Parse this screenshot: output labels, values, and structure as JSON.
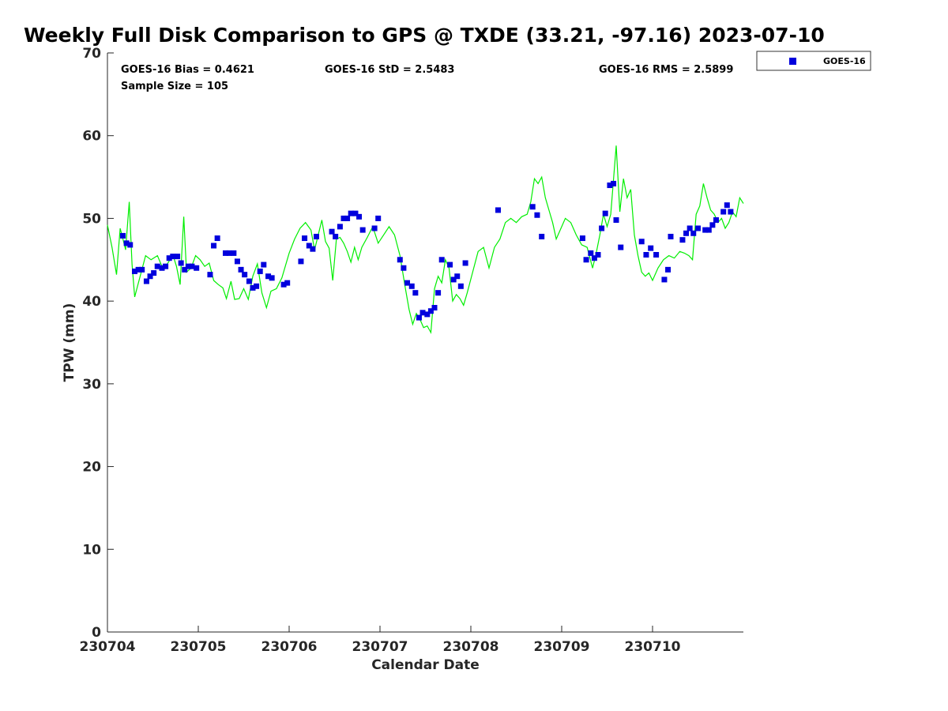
{
  "chart_data": {
    "type": "scatter",
    "title": "Weekly Full Disk Comparison to GPS @ TXDE (33.21, -97.16) 2023-07-10",
    "xlabel": "Calendar Date",
    "ylabel": "TPW (mm)",
    "xlim": [
      0,
      7
    ],
    "ylim": [
      0,
      70
    ],
    "y_ticks": [
      0,
      10,
      20,
      30,
      40,
      50,
      60,
      70
    ],
    "x_tick_positions": [
      0,
      1,
      2,
      3,
      4,
      5,
      6
    ],
    "x_tick_labels": [
      "230704",
      "230705",
      "230706",
      "230707",
      "230708",
      "230709",
      "230710"
    ],
    "grid": false,
    "legend_position": "top-right",
    "stats": {
      "bias": "GOES-16 Bias = 0.4621",
      "std": "GOES-16 StD = 2.5483",
      "rms": "GOES-16 RMS = 2.5899",
      "sample": "Sample Size = 105"
    },
    "series": [
      {
        "name": "GOES-16",
        "kind": "scatter",
        "color": "#0000dd",
        "marker": "square",
        "x": [
          0.17,
          0.21,
          0.25,
          0.3,
          0.34,
          0.38,
          0.43,
          0.47,
          0.51,
          0.55,
          0.6,
          0.64,
          0.68,
          0.72,
          0.77,
          0.81,
          0.85,
          0.89,
          0.93,
          0.98,
          1.13,
          1.17,
          1.21,
          1.3,
          1.34,
          1.39,
          1.43,
          1.47,
          1.51,
          1.56,
          1.6,
          1.64,
          1.68,
          1.72,
          1.77,
          1.81,
          1.94,
          1.98,
          2.13,
          2.17,
          2.22,
          2.26,
          2.3,
          2.47,
          2.51,
          2.56,
          2.6,
          2.64,
          2.68,
          2.73,
          2.77,
          2.81,
          2.94,
          2.98,
          3.22,
          3.26,
          3.3,
          3.35,
          3.39,
          3.43,
          3.47,
          3.52,
          3.56,
          3.6,
          3.64,
          3.68,
          3.77,
          3.81,
          3.85,
          3.89,
          3.94,
          4.3,
          4.68,
          4.73,
          4.78,
          5.23,
          5.27,
          5.32,
          5.36,
          5.4,
          5.44,
          5.48,
          5.53,
          5.57,
          5.6,
          5.65,
          5.88,
          5.93,
          5.98,
          6.04,
          6.13,
          6.17,
          6.2,
          6.33,
          6.37,
          6.41,
          6.45,
          6.5,
          6.58,
          6.62,
          6.66,
          6.7,
          6.78,
          6.82,
          6.86
        ],
        "y": [
          47.9,
          47.0,
          46.8,
          43.6,
          43.8,
          43.8,
          42.4,
          43.0,
          43.4,
          44.2,
          44.0,
          44.2,
          45.2,
          45.4,
          45.4,
          44.6,
          43.8,
          44.2,
          44.2,
          44.0,
          43.2,
          46.7,
          47.6,
          45.8,
          45.8,
          45.8,
          44.8,
          43.8,
          43.2,
          42.4,
          41.6,
          41.8,
          43.6,
          44.4,
          43.0,
          42.8,
          42.0,
          42.2,
          44.8,
          47.6,
          46.7,
          46.3,
          47.8,
          48.4,
          47.8,
          49.0,
          50.0,
          50.0,
          50.6,
          50.6,
          50.2,
          48.6,
          48.8,
          50.0,
          45.0,
          44.0,
          42.2,
          41.8,
          41.0,
          38.0,
          38.6,
          38.4,
          38.8,
          39.2,
          41.0,
          45.0,
          44.4,
          42.6,
          43.0,
          41.8,
          44.6,
          51.0,
          51.4,
          50.4,
          47.8,
          47.6,
          45.0,
          45.8,
          45.2,
          45.6,
          48.8,
          50.6,
          54.0,
          54.2,
          49.8,
          46.5,
          47.2,
          45.6,
          46.4,
          45.6,
          42.6,
          43.8,
          47.8,
          47.4,
          48.2,
          48.8,
          48.2,
          48.8,
          48.6,
          48.6,
          49.2,
          49.8,
          50.8,
          51.6,
          50.8
        ]
      },
      {
        "kind": "line",
        "color": "#00ee00",
        "x": [
          0.0,
          0.05,
          0.1,
          0.14,
          0.17,
          0.2,
          0.24,
          0.27,
          0.3,
          0.36,
          0.42,
          0.48,
          0.55,
          0.6,
          0.66,
          0.72,
          0.76,
          0.8,
          0.84,
          0.87,
          0.92,
          0.97,
          1.02,
          1.07,
          1.12,
          1.17,
          1.22,
          1.27,
          1.31,
          1.36,
          1.4,
          1.45,
          1.5,
          1.55,
          1.6,
          1.65,
          1.7,
          1.75,
          1.8,
          1.86,
          1.92,
          2.0,
          2.06,
          2.12,
          2.18,
          2.24,
          2.28,
          2.32,
          2.36,
          2.4,
          2.44,
          2.48,
          2.52,
          2.56,
          2.6,
          2.64,
          2.68,
          2.72,
          2.76,
          2.8,
          2.86,
          2.92,
          2.98,
          3.04,
          3.1,
          3.16,
          3.22,
          3.28,
          3.32,
          3.36,
          3.4,
          3.44,
          3.48,
          3.52,
          3.56,
          3.6,
          3.64,
          3.68,
          3.72,
          3.76,
          3.8,
          3.84,
          3.88,
          3.92,
          3.96,
          4.02,
          4.08,
          4.14,
          4.2,
          4.26,
          4.32,
          4.38,
          4.44,
          4.5,
          4.56,
          4.62,
          4.66,
          4.7,
          4.74,
          4.78,
          4.82,
          4.86,
          4.9,
          4.94,
          4.98,
          5.04,
          5.1,
          5.16,
          5.22,
          5.28,
          5.34,
          5.38,
          5.42,
          5.46,
          5.5,
          5.54,
          5.6,
          5.64,
          5.68,
          5.72,
          5.76,
          5.8,
          5.84,
          5.88,
          5.92,
          5.96,
          6.0,
          6.06,
          6.12,
          6.18,
          6.24,
          6.3,
          6.35,
          6.4,
          6.44,
          6.48,
          6.52,
          6.56,
          6.6,
          6.64,
          6.68,
          6.72,
          6.76,
          6.8,
          6.84,
          6.88,
          6.92,
          6.96,
          7.0
        ],
        "y": [
          49.2,
          46.5,
          43.2,
          48.8,
          47.5,
          46.2,
          52.0,
          44.5,
          40.5,
          43.0,
          45.5,
          45.0,
          45.5,
          44.2,
          44.5,
          45.6,
          44.2,
          42.0,
          50.2,
          43.5,
          44.0,
          45.5,
          45.0,
          44.2,
          44.6,
          42.5,
          42.0,
          41.6,
          40.3,
          42.4,
          40.2,
          40.3,
          41.5,
          40.2,
          43.0,
          44.5,
          41.0,
          39.2,
          41.2,
          41.5,
          42.8,
          45.8,
          47.5,
          48.8,
          49.5,
          48.6,
          46.2,
          48.0,
          49.8,
          47.2,
          46.4,
          42.5,
          47.5,
          47.7,
          47.0,
          46.0,
          44.7,
          46.5,
          45.0,
          46.5,
          47.7,
          49.0,
          47.0,
          48.0,
          49.0,
          48.0,
          45.5,
          41.5,
          39.0,
          37.2,
          38.5,
          37.8,
          36.8,
          37.0,
          36.2,
          41.5,
          43.0,
          42.2,
          45.0,
          44.0,
          40.0,
          40.8,
          40.3,
          39.5,
          41.0,
          43.5,
          46.0,
          46.5,
          44.0,
          46.5,
          47.5,
          49.5,
          50.0,
          49.5,
          50.2,
          50.5,
          52.0,
          54.8,
          54.2,
          55.0,
          52.5,
          51.0,
          49.5,
          47.5,
          48.5,
          50.0,
          49.5,
          48.0,
          46.8,
          46.5,
          44.0,
          45.8,
          48.0,
          50.5,
          49.0,
          50.5,
          58.8,
          50.8,
          54.8,
          52.5,
          53.5,
          48.0,
          45.5,
          43.5,
          43.0,
          43.4,
          42.5,
          44.0,
          45.0,
          45.5,
          45.2,
          46.0,
          45.8,
          45.5,
          45.0,
          50.5,
          51.5,
          54.2,
          52.5,
          51.0,
          50.5,
          49.5,
          50.0,
          48.8,
          49.5,
          50.8,
          50.2,
          52.5,
          51.8
        ]
      }
    ]
  },
  "legend": {
    "label": "GOES-16",
    "marker_color": "#0000dd"
  }
}
